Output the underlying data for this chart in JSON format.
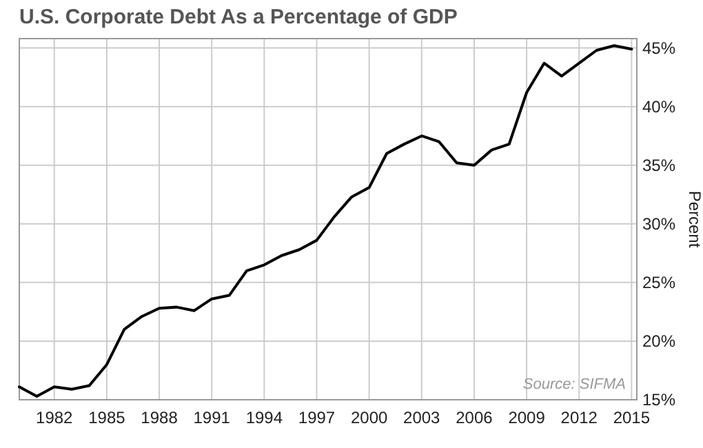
{
  "chart_data": {
    "type": "line",
    "title": "U.S. Corporate Debt As a Percentage of GDP",
    "ylabel": "Percent",
    "annotations": [
      "Source: SIFMA"
    ],
    "x": [
      1980,
      1981,
      1982,
      1983,
      1984,
      1985,
      1986,
      1987,
      1988,
      1989,
      1990,
      1991,
      1992,
      1993,
      1994,
      1995,
      1996,
      1997,
      1998,
      1999,
      2000,
      2001,
      2002,
      2003,
      2004,
      2005,
      2006,
      2007,
      2008,
      2009,
      2010,
      2011,
      2012,
      2013,
      2014,
      2015
    ],
    "series": [
      {
        "color": "#000000",
        "values": [
          16.1,
          15.3,
          16.1,
          15.9,
          16.2,
          18.0,
          21.0,
          22.1,
          22.8,
          22.9,
          22.6,
          23.6,
          23.9,
          26.0,
          26.5,
          27.3,
          27.8,
          28.6,
          30.6,
          32.3,
          33.1,
          36.0,
          36.8,
          37.5,
          37.0,
          35.2,
          35.0,
          36.3,
          36.8,
          41.2,
          43.7,
          42.6,
          43.7,
          44.8,
          45.2,
          44.9
        ]
      }
    ],
    "xlim": [
      1980,
      2015.3
    ],
    "xticks": [
      1982,
      1985,
      1988,
      1991,
      1994,
      1997,
      2000,
      2003,
      2006,
      2009,
      2012,
      2015
    ],
    "ylim": [
      15,
      45.8
    ],
    "yticks": [
      {
        "value": 15,
        "label": "15%"
      },
      {
        "value": 20,
        "label": "20%"
      },
      {
        "value": 25,
        "label": "25%"
      },
      {
        "value": 30,
        "label": "30%"
      },
      {
        "value": 35,
        "label": "35%"
      },
      {
        "value": 40,
        "label": "40%"
      },
      {
        "value": 45,
        "label": "45%"
      }
    ],
    "grid": true,
    "line_style": "solid",
    "marker": "none"
  }
}
